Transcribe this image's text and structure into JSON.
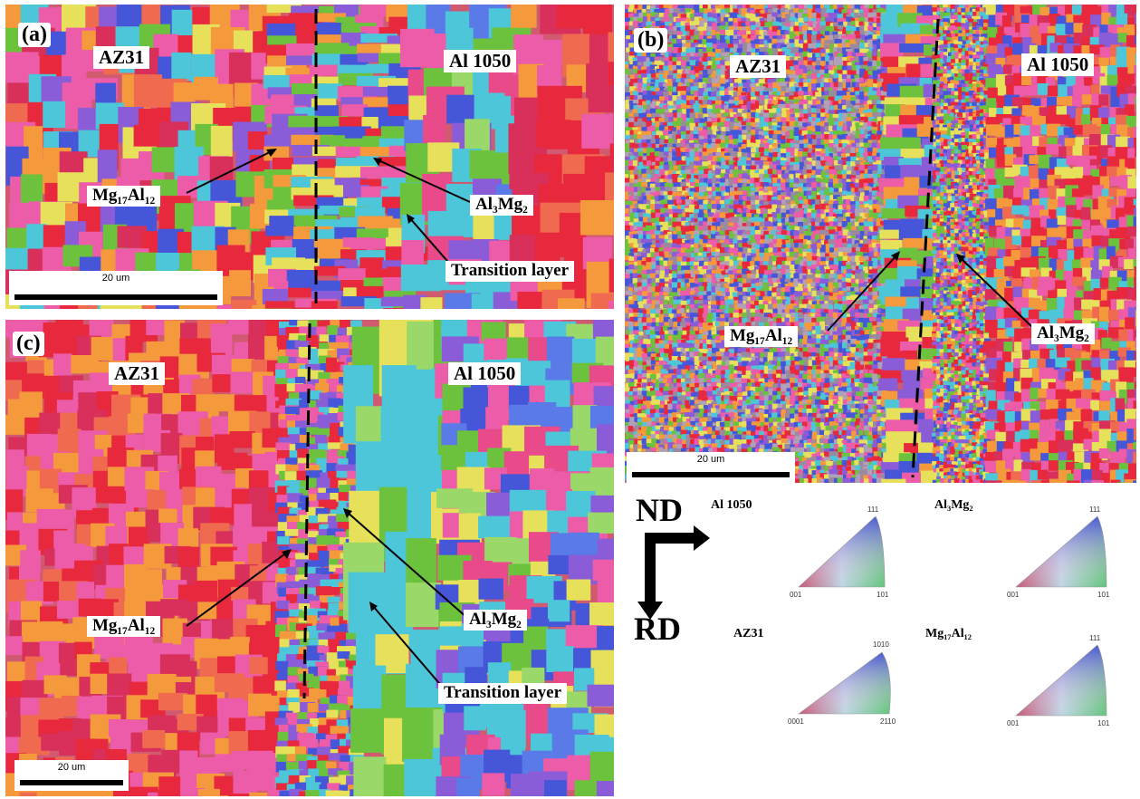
{
  "panels": [
    {
      "id": "a",
      "label": "(a)",
      "left_material": "AZ31",
      "right_material": "Al 1050",
      "annotations": [
        "Mg₁₇Al₁₂",
        "Al₃Mg₂",
        "Transition layer"
      ],
      "scale_bar": "20 um"
    },
    {
      "id": "b",
      "label": "(b)",
      "left_material": "AZ31",
      "right_material": "Al 1050",
      "annotations": [
        "Mg₁₇Al₁₂",
        "Al₃Mg₂"
      ],
      "scale_bar": "20 um"
    },
    {
      "id": "c",
      "label": "(c)",
      "left_material": "AZ31",
      "right_material": "Al 1050",
      "annotations": [
        "Mg₁₇Al₁₂",
        "Al₃Mg₂",
        "Transition layer"
      ],
      "scale_bar": "20 um"
    }
  ],
  "legend": {
    "axis_up": "ND",
    "axis_down": "RD",
    "ipf_keys": [
      {
        "name": "Al 1050",
        "corners": [
          "001",
          "101",
          "111"
        ]
      },
      {
        "name": "Al₃Mg₂",
        "corners": [
          "001",
          "101",
          "111"
        ]
      },
      {
        "name": "AZ31",
        "corners": [
          "0001",
          "2110",
          "1010"
        ]
      },
      {
        "name": "Mg₁₇Al₁₂",
        "corners": [
          "001",
          "101",
          "111"
        ]
      }
    ]
  },
  "colors": {
    "ipf_red": "#e8283c",
    "ipf_green": "#6cc23c",
    "ipf_blue": "#4656d8",
    "ipf_pink": "#ec5ca8",
    "ipf_cyan": "#4cc6d8",
    "ipf_purple": "#8a5cd8",
    "ipf_orange": "#f49a3c",
    "ipf_yellow": "#e6e05a"
  }
}
